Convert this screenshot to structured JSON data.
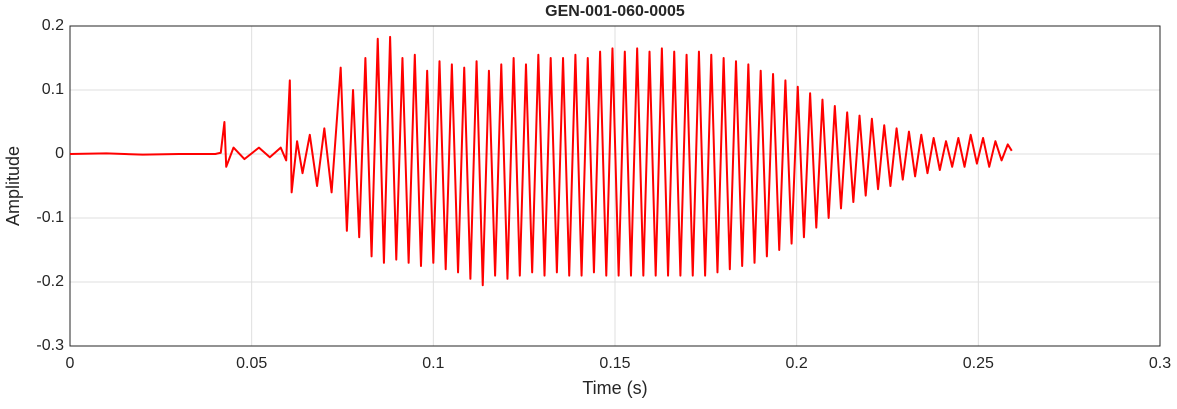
{
  "chart_data": {
    "type": "line",
    "title": "GEN-001-060-0005",
    "xlabel": "Time (s)",
    "ylabel": "Amplitude",
    "xlim": [
      0,
      0.3
    ],
    "xticks": [
      0,
      0.05,
      0.1,
      0.15,
      0.2,
      0.25,
      0.3
    ],
    "ylim": [
      -0.3,
      0.2
    ],
    "yticks": [
      -0.3,
      -0.2,
      -0.1,
      0,
      0.1,
      0.2
    ],
    "grid": true,
    "x": [
      0,
      0.01,
      0.02,
      0.03,
      0.04,
      0.0415,
      0.0425,
      0.043,
      0.045,
      0.048,
      0.052,
      0.055,
      0.058,
      0.0595,
      0.0605,
      0.061,
      0.0625,
      0.064,
      0.066,
      0.068,
      0.07,
      0.072,
      0.0745,
      0.0762,
      0.0779,
      0.0796,
      0.0813,
      0.083,
      0.0847,
      0.0864,
      0.0881,
      0.0898,
      0.0915,
      0.0932,
      0.0949,
      0.0966,
      0.0983,
      0.1,
      0.1017,
      0.1034,
      0.1051,
      0.1068,
      0.1085,
      0.1102,
      0.1119,
      0.1136,
      0.1153,
      0.117,
      0.1187,
      0.1204,
      0.1221,
      0.1238,
      0.1255,
      0.1272,
      0.1289,
      0.1306,
      0.1323,
      0.134,
      0.1357,
      0.1374,
      0.1391,
      0.1408,
      0.1425,
      0.1442,
      0.1459,
      0.1476,
      0.1493,
      0.151,
      0.1527,
      0.1544,
      0.1561,
      0.1578,
      0.1595,
      0.1612,
      0.1629,
      0.1646,
      0.1663,
      0.168,
      0.1697,
      0.1714,
      0.1731,
      0.1748,
      0.1765,
      0.1782,
      0.1799,
      0.1816,
      0.1833,
      0.185,
      0.1867,
      0.1884,
      0.1901,
      0.1918,
      0.1935,
      0.1952,
      0.1969,
      0.1986,
      0.2003,
      0.202,
      0.2037,
      0.2054,
      0.2071,
      0.2088,
      0.2105,
      0.2122,
      0.2139,
      0.2156,
      0.2173,
      0.219,
      0.2207,
      0.2224,
      0.2241,
      0.2258,
      0.2275,
      0.2292,
      0.2309,
      0.2326,
      0.2343,
      0.236,
      0.2377,
      0.2394,
      0.2411,
      0.2428,
      0.2445,
      0.2462,
      0.2479,
      0.2496,
      0.2513,
      0.253,
      0.2547,
      0.2564,
      0.2581,
      0.2592
    ],
    "series": [
      {
        "name": "Amplitude",
        "color": "#ff0000",
        "values": [
          0,
          0.001,
          -0.001,
          0,
          0,
          0.002,
          0.05,
          -0.02,
          0.01,
          -0.008,
          0.01,
          -0.005,
          0.01,
          -0.01,
          0.115,
          -0.06,
          0.02,
          -0.03,
          0.03,
          -0.05,
          0.04,
          -0.06,
          0.135,
          -0.12,
          0.1,
          -0.13,
          0.15,
          -0.16,
          0.18,
          -0.17,
          0.183,
          -0.165,
          0.15,
          -0.17,
          0.155,
          -0.175,
          0.13,
          -0.17,
          0.145,
          -0.18,
          0.14,
          -0.185,
          0.135,
          -0.195,
          0.145,
          -0.205,
          0.13,
          -0.19,
          0.14,
          -0.195,
          0.15,
          -0.19,
          0.14,
          -0.185,
          0.155,
          -0.19,
          0.15,
          -0.185,
          0.15,
          -0.19,
          0.155,
          -0.19,
          0.15,
          -0.185,
          0.16,
          -0.19,
          0.165,
          -0.19,
          0.16,
          -0.19,
          0.165,
          -0.19,
          0.16,
          -0.19,
          0.165,
          -0.19,
          0.16,
          -0.19,
          0.155,
          -0.19,
          0.16,
          -0.19,
          0.155,
          -0.185,
          0.15,
          -0.18,
          0.145,
          -0.175,
          0.14,
          -0.17,
          0.13,
          -0.16,
          0.125,
          -0.15,
          0.115,
          -0.14,
          0.105,
          -0.13,
          0.095,
          -0.115,
          0.085,
          -0.1,
          0.075,
          -0.085,
          0.065,
          -0.075,
          0.06,
          -0.065,
          0.055,
          -0.055,
          0.045,
          -0.05,
          0.04,
          -0.04,
          0.035,
          -0.035,
          0.03,
          -0.03,
          0.025,
          -0.025,
          0.02,
          -0.02,
          0.025,
          -0.02,
          0.03,
          -0.015,
          0.025,
          -0.02,
          0.02,
          -0.01,
          0.015,
          0.005
        ]
      }
    ]
  }
}
